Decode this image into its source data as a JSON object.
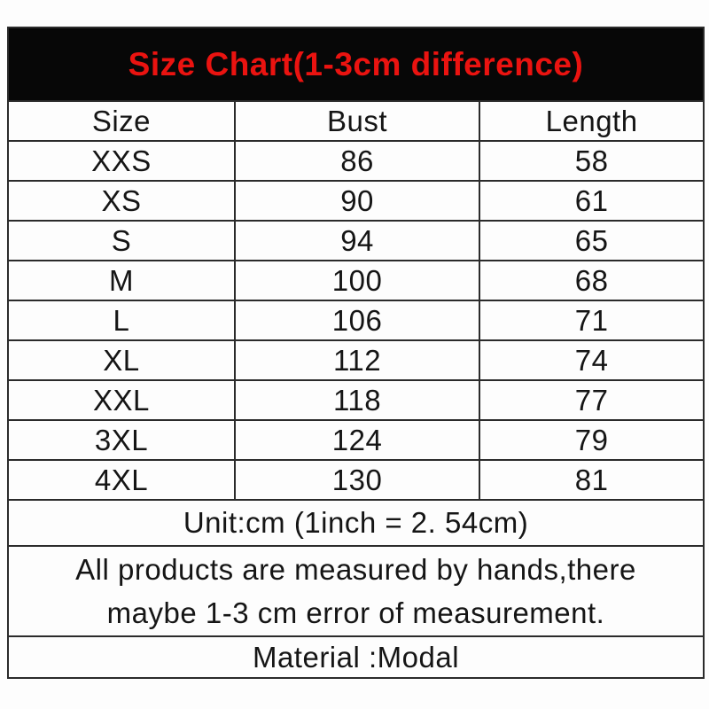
{
  "banner": {
    "title": "Size Chart(1-3cm difference)",
    "title_color": "#ea1310",
    "background_color": "#070707"
  },
  "table": {
    "headers": [
      "Size",
      "Bust",
      "Length"
    ],
    "rows": [
      {
        "size": "XXS",
        "bust": "86",
        "length": "58"
      },
      {
        "size": "XS",
        "bust": "90",
        "length": "61"
      },
      {
        "size": "S",
        "bust": "94",
        "length": "65"
      },
      {
        "size": "M",
        "bust": "100",
        "length": "68"
      },
      {
        "size": "L",
        "bust": "106",
        "length": "71"
      },
      {
        "size": "XL",
        "bust": "112",
        "length": "74"
      },
      {
        "size": "XXL",
        "bust": "118",
        "length": "77"
      },
      {
        "size": "3XL",
        "bust": "124",
        "length": "79"
      },
      {
        "size": "4XL",
        "bust": "130",
        "length": "81"
      }
    ]
  },
  "footer": {
    "unit_note": "Unit:cm (1inch = 2. 54cm)",
    "measure_note_line1": "All products are measured by hands,there",
    "measure_note_line2": "maybe 1-3 cm error of measurement.",
    "material_note": "Material :Modal"
  },
  "chart_data": {
    "type": "table",
    "title": "Size Chart(1-3cm difference)",
    "columns": [
      "Size",
      "Bust",
      "Length"
    ],
    "rows": [
      [
        "XXS",
        86,
        58
      ],
      [
        "XS",
        90,
        61
      ],
      [
        "S",
        94,
        65
      ],
      [
        "M",
        100,
        68
      ],
      [
        "L",
        106,
        71
      ],
      [
        "XL",
        112,
        74
      ],
      [
        "XXL",
        118,
        77
      ],
      [
        "3XL",
        124,
        79
      ],
      [
        "4XL",
        130,
        81
      ]
    ],
    "unit": "cm",
    "notes": [
      "Unit:cm (1inch = 2. 54cm)",
      "All products are measured by hands,there maybe 1-3 cm error of measurement.",
      "Material :Modal"
    ]
  }
}
